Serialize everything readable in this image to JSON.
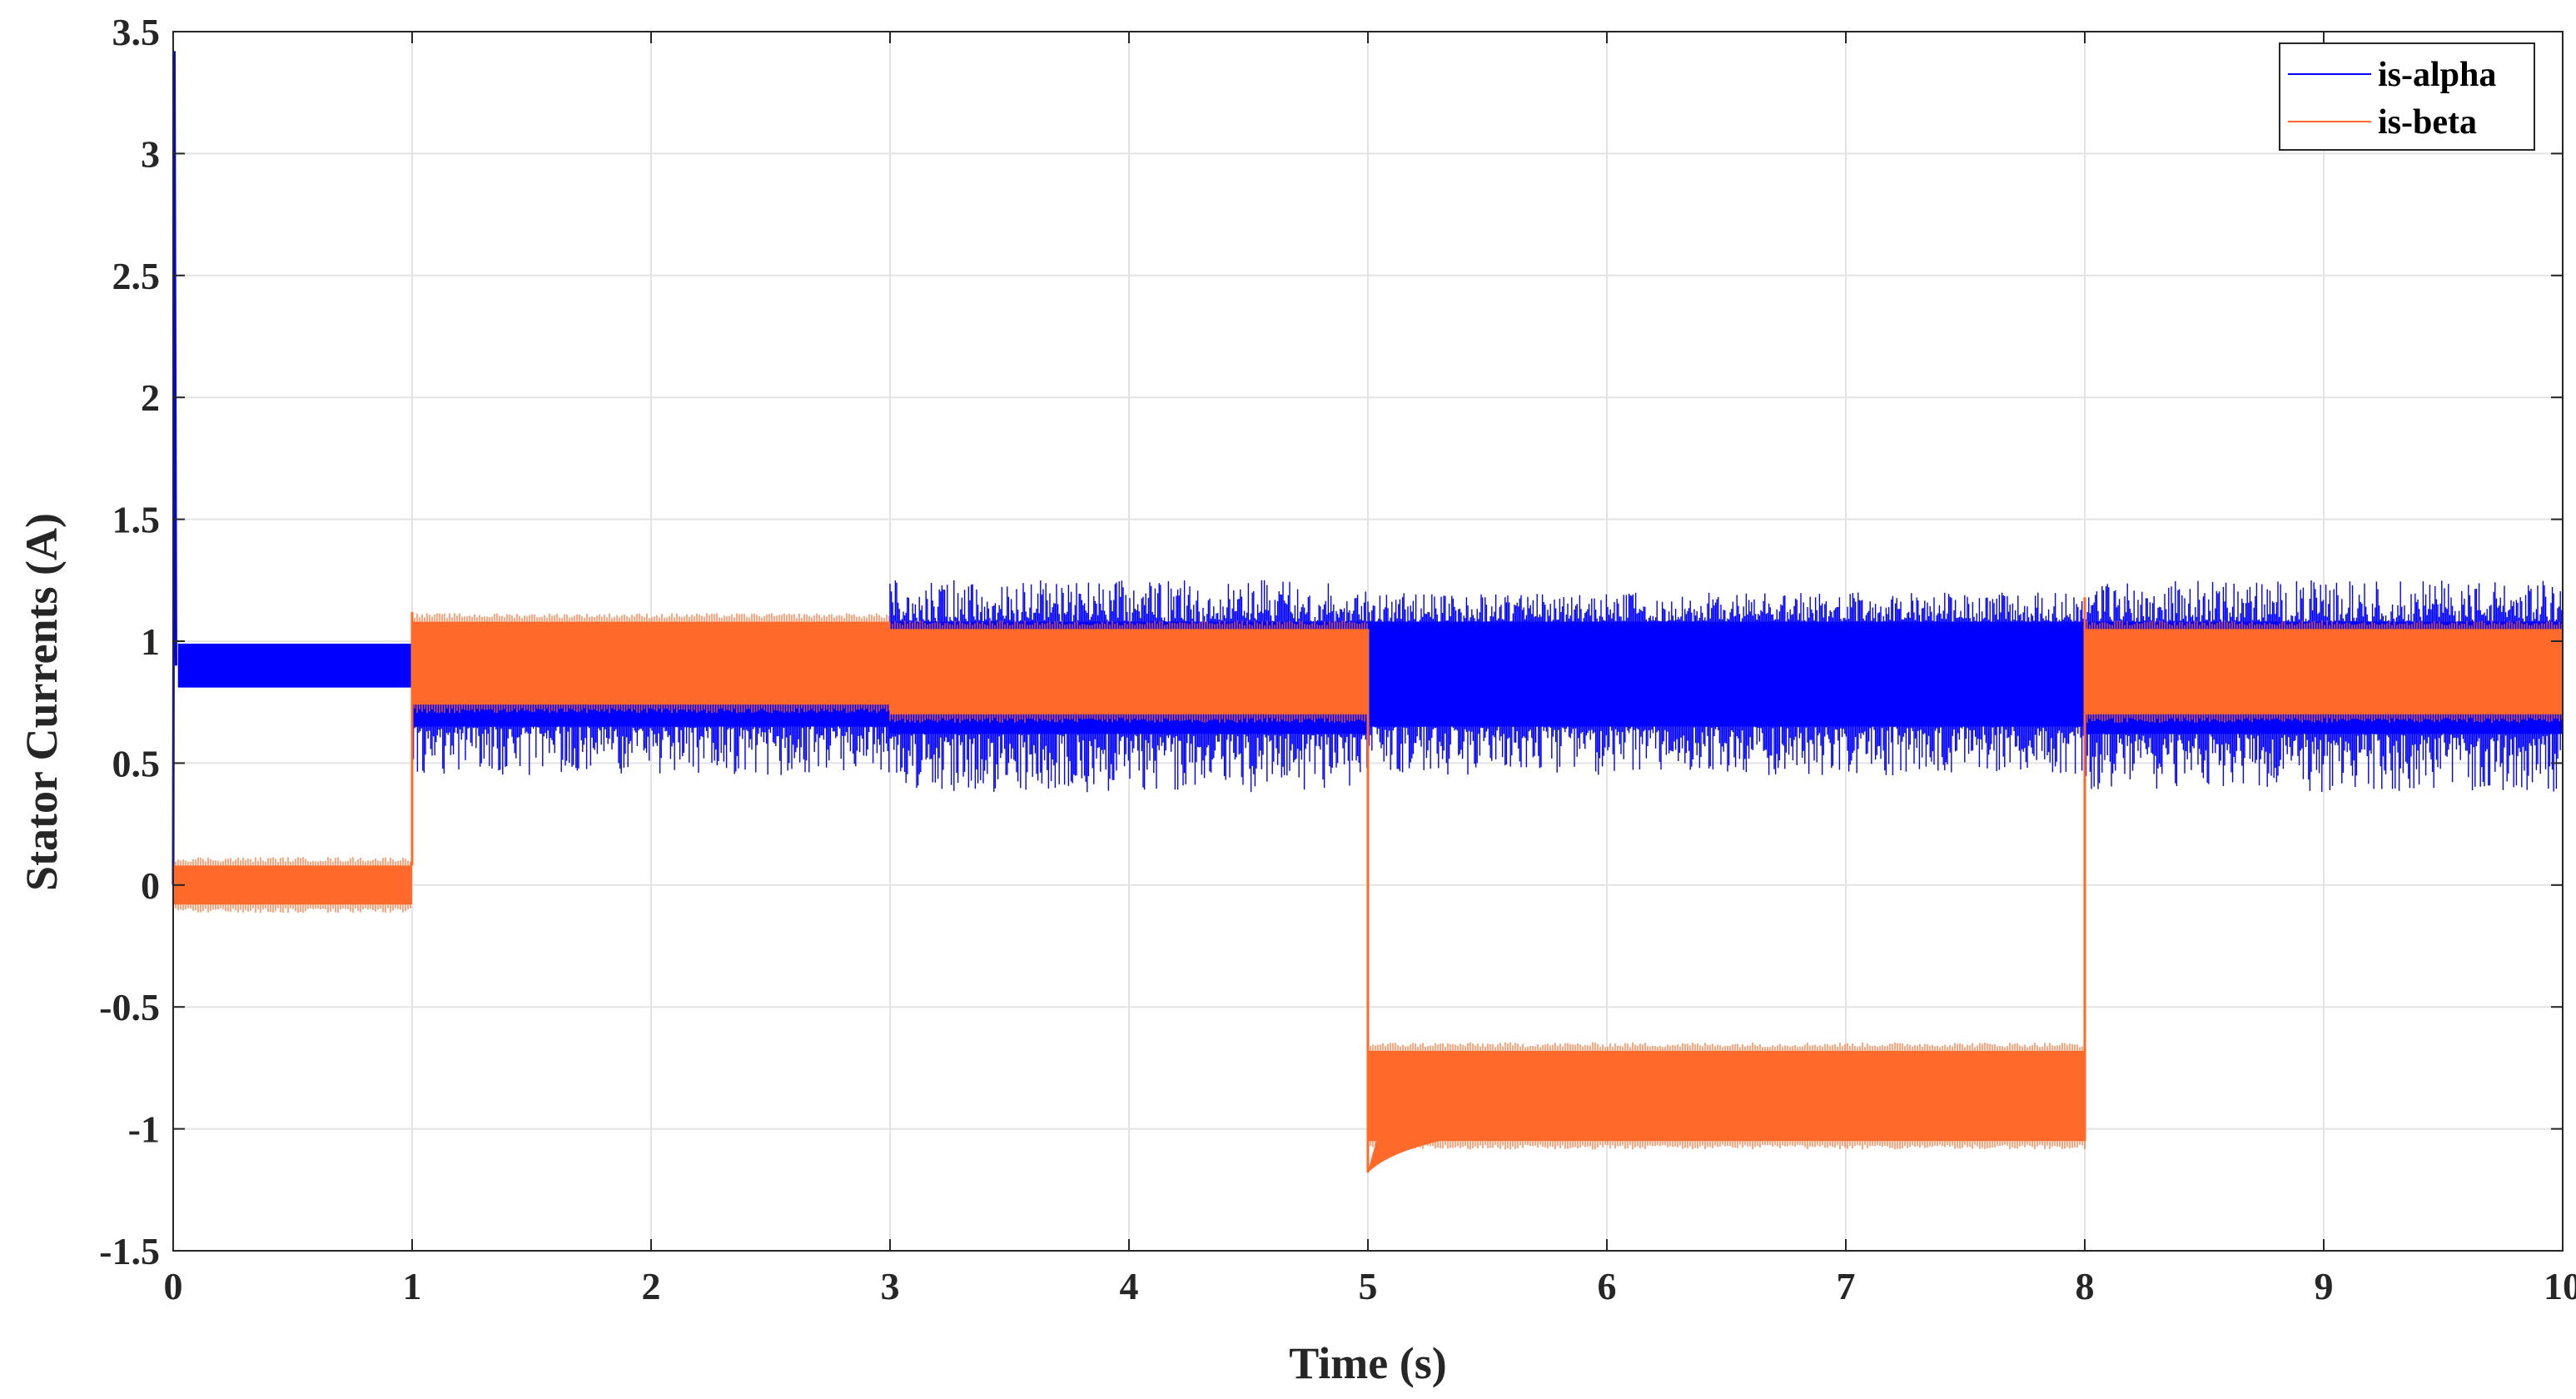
{
  "chart_data": {
    "type": "line",
    "xlabel": "Time (s)",
    "ylabel": "Stator Currents (A)",
    "xlim": [
      0,
      10
    ],
    "ylim": [
      -1.5,
      3.5
    ],
    "xticks": [
      0,
      1,
      2,
      3,
      4,
      5,
      6,
      7,
      8,
      9,
      10
    ],
    "yticks": [
      3.5,
      3,
      2.5,
      2,
      1.5,
      1,
      0.5,
      0,
      -0.5,
      -1,
      -1.5
    ],
    "xtick_labels": [
      "0",
      "1",
      "2",
      "3",
      "4",
      "5",
      "6",
      "7",
      "8",
      "9",
      "10"
    ],
    "ytick_labels": [
      "3.5",
      "3",
      "2.5",
      "2",
      "1.5",
      "1",
      "0.5",
      "0",
      "-0.5",
      "-1",
      "-1.5"
    ],
    "grid": true,
    "legend_position": "top-right",
    "series": [
      {
        "name": "is-alpha",
        "color": "#0000ff",
        "description_segments": [
          {
            "t0": 0.0,
            "t1": 0.01,
            "peak": 3.42
          },
          {
            "t0": 0.02,
            "t1": 1.0,
            "min": 0.81,
            "max": 0.99
          },
          {
            "t0": 1.0,
            "t1": 3.0,
            "min": 0.45,
            "max": 1.05
          },
          {
            "t0": 3.0,
            "t1": 5.0,
            "min": 0.38,
            "max": 1.25
          },
          {
            "t0": 5.0,
            "t1": 8.0,
            "min": 0.45,
            "max": 1.2
          },
          {
            "t0": 8.0,
            "t1": 10.0,
            "min": 0.38,
            "max": 1.25
          }
        ]
      },
      {
        "name": "is-beta",
        "color": "#ff6a2a",
        "description_segments": [
          {
            "t0": 0.0,
            "t1": 1.0,
            "min": -0.08,
            "max": 0.08
          },
          {
            "t0": 1.0,
            "t1": 3.0,
            "min": 0.74,
            "max": 1.08
          },
          {
            "t0": 3.0,
            "t1": 5.0,
            "min": 0.7,
            "max": 1.05
          },
          {
            "t0": 5.0,
            "t1": 8.0,
            "min": -1.05,
            "max": -0.68
          },
          {
            "t0": 8.0,
            "t1": 10.0,
            "min": 0.7,
            "max": 1.05
          }
        ]
      }
    ]
  }
}
